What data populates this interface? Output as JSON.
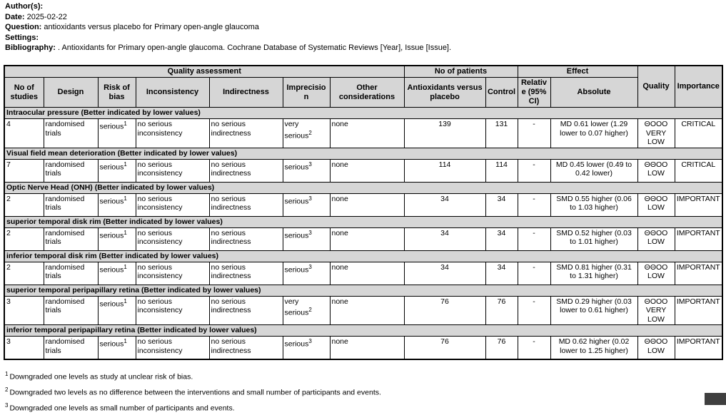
{
  "colors": {
    "header_bg": "#d6d6d6",
    "border": "#000000",
    "corner_artifact": "#3f3f3f"
  },
  "meta": {
    "author_label": "Author(s):",
    "author_value": "",
    "date_label": "Date:",
    "date_value": "2025-02-22",
    "question_label": "Question:",
    "question_value": "antioxidants versus placebo for Primary open-angle glaucoma",
    "settings_label": "Settings:",
    "settings_value": "",
    "bibliography_label": "Bibliography:",
    "bibliography_value": ". Antioxidants for Primary open-angle glaucoma. Cochrane Database of Systematic Reviews [Year], Issue [Issue]."
  },
  "table": {
    "group_headers": {
      "quality_assessment": "Quality assessment",
      "no_of_patients": "No of patients",
      "effect": "Effect",
      "quality": "Quality",
      "importance": "Importance"
    },
    "columns": [
      {
        "key": "no_of_studies",
        "label": "No of studies"
      },
      {
        "key": "design",
        "label": "Design"
      },
      {
        "key": "risk_of_bias",
        "label": "Risk of bias"
      },
      {
        "key": "inconsistency",
        "label": "Inconsistency"
      },
      {
        "key": "indirectness",
        "label": "Indirectness"
      },
      {
        "key": "imprecision",
        "label": "Imprecision"
      },
      {
        "key": "other_considerations",
        "label": "Other considerations"
      },
      {
        "key": "antioxidants",
        "label": "Antioxidants versus placebo"
      },
      {
        "key": "control",
        "label": "Control"
      },
      {
        "key": "relative",
        "label": "Relative (95% CI)"
      },
      {
        "key": "absolute",
        "label": "Absolute"
      }
    ],
    "sections": [
      {
        "title": "Intraocular pressure (Better indicated by lower values)",
        "row": {
          "no_of_studies": "4",
          "design": "randomised trials",
          "risk_of_bias": {
            "text": "serious",
            "sup": "1"
          },
          "inconsistency": "no serious inconsistency",
          "indirectness": "no serious indirectness",
          "imprecision": {
            "text": "very serious",
            "sup": "2"
          },
          "other_considerations": "none",
          "antioxidants": "139",
          "control": "131",
          "relative": "-",
          "absolute": "MD 0.61 lower (1.29 lower to 0.07 higher)",
          "quality": {
            "symbols": "ΘOOO",
            "label": "VERY LOW"
          },
          "importance": "CRITICAL"
        }
      },
      {
        "title": "Visual field mean deterioration (Better indicated by lower values)",
        "row": {
          "no_of_studies": "7",
          "design": "randomised trials",
          "risk_of_bias": {
            "text": "serious",
            "sup": "1"
          },
          "inconsistency": "no serious inconsistency",
          "indirectness": "no serious indirectness",
          "imprecision": {
            "text": "serious",
            "sup": "3"
          },
          "other_considerations": "none",
          "antioxidants": "114",
          "control": "114",
          "relative": "-",
          "absolute": "MD 0.45 lower (0.49 to 0.42 lower)",
          "quality": {
            "symbols": "ΘΘOO",
            "label": "LOW"
          },
          "importance": "CRITICAL"
        }
      },
      {
        "title": "Optic Nerve Head (ONH) (Better indicated by lower values)",
        "row": {
          "no_of_studies": "2",
          "design": "randomised trials",
          "risk_of_bias": {
            "text": "serious",
            "sup": "1"
          },
          "inconsistency": "no serious inconsistency",
          "indirectness": "no serious indirectness",
          "imprecision": {
            "text": "serious",
            "sup": "3"
          },
          "other_considerations": "none",
          "antioxidants": "34",
          "control": "34",
          "relative": "-",
          "absolute": "SMD 0.55 higher (0.06 to 1.03 higher)",
          "quality": {
            "symbols": "ΘΘOO",
            "label": "LOW"
          },
          "importance": "IMPORTANT"
        }
      },
      {
        "title": "superior temporal disk rim (Better indicated by lower values)",
        "row": {
          "no_of_studies": "2",
          "design": "randomised trials",
          "risk_of_bias": {
            "text": "serious",
            "sup": "1"
          },
          "inconsistency": "no serious inconsistency",
          "indirectness": "no serious indirectness",
          "imprecision": {
            "text": "serious",
            "sup": "3"
          },
          "other_considerations": "none",
          "antioxidants": "34",
          "control": "34",
          "relative": "-",
          "absolute": "SMD 0.52 higher (0.03 to 1.01 higher)",
          "quality": {
            "symbols": "ΘΘOO",
            "label": "LOW"
          },
          "importance": "IMPORTANT"
        }
      },
      {
        "title": "inferior temporal disk rim (Better indicated by lower values)",
        "row": {
          "no_of_studies": "2",
          "design": "randomised trials",
          "risk_of_bias": {
            "text": "serious",
            "sup": "1"
          },
          "inconsistency": "no serious inconsistency",
          "indirectness": "no serious indirectness",
          "imprecision": {
            "text": "serious",
            "sup": "3"
          },
          "other_considerations": "none",
          "antioxidants": "34",
          "control": "34",
          "relative": "-",
          "absolute": "SMD 0.81 higher (0.31 to 1.31 higher)",
          "quality": {
            "symbols": "ΘΘOO",
            "label": "LOW"
          },
          "importance": "IMPORTANT"
        }
      },
      {
        "title": "superior temporal peripapillary retina (Better indicated by lower values)",
        "row": {
          "no_of_studies": "3",
          "design": "randomised trials",
          "risk_of_bias": {
            "text": "serious",
            "sup": "1"
          },
          "inconsistency": "no serious inconsistency",
          "indirectness": "no serious indirectness",
          "imprecision": {
            "text": "very serious",
            "sup": "2"
          },
          "other_considerations": "none",
          "antioxidants": "76",
          "control": "76",
          "relative": "-",
          "absolute": "SMD 0.29 higher (0.03 lower to 0.61 higher)",
          "quality": {
            "symbols": "ΘOOO",
            "label": "VERY LOW"
          },
          "importance": "IMPORTANT"
        }
      },
      {
        "title": "inferior temporal peripapillary retina (Better indicated by lower values)",
        "row": {
          "no_of_studies": "3",
          "design": "randomised trials",
          "risk_of_bias": {
            "text": "serious",
            "sup": "1"
          },
          "inconsistency": "no serious inconsistency",
          "indirectness": "no serious indirectness",
          "imprecision": {
            "text": "serious",
            "sup": "3"
          },
          "other_considerations": "none",
          "antioxidants": "76",
          "control": "76",
          "relative": "-",
          "absolute": "MD 0.62 higher (0.02 lower to 1.25 higher)",
          "quality": {
            "symbols": "ΘΘOO",
            "label": "LOW"
          },
          "importance": "IMPORTANT"
        }
      }
    ]
  },
  "footnotes": [
    {
      "sup": "1",
      "text": "Downgraded one levels as study at unclear risk of bias."
    },
    {
      "sup": "2",
      "text": "Downgraded two levels as no difference between the interventions and small number of participants and events."
    },
    {
      "sup": "3",
      "text": "Downgraded one levels as small number of participants and events."
    }
  ]
}
